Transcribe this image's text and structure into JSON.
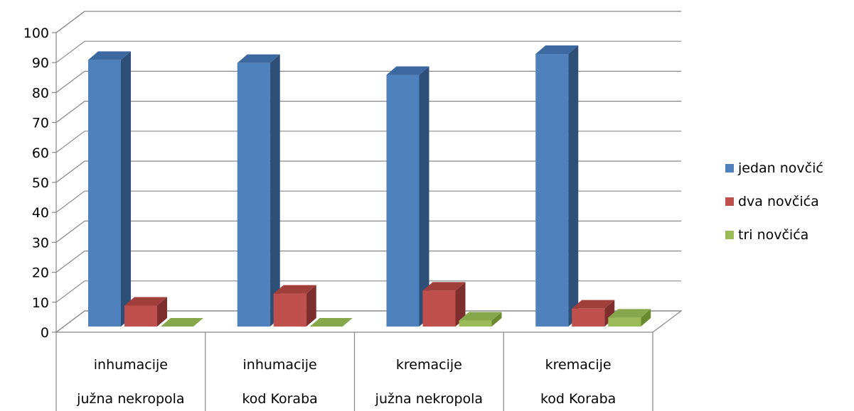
{
  "chart_data": {
    "type": "bar",
    "style": "3d-clustered-column",
    "categories": [
      [
        "inhumacije",
        "južna nekropola"
      ],
      [
        "inhumacije",
        "kod Koraba"
      ],
      [
        "kremacije",
        "južna nekropola"
      ],
      [
        "kremacije",
        "kod Koraba"
      ]
    ],
    "series": [
      {
        "name": "jedan novčić",
        "color": "#4F81BD",
        "side": "#2E4F78",
        "top": "#3C69A0",
        "values": [
          89,
          88,
          84,
          91
        ]
      },
      {
        "name": "dva novčića",
        "color": "#C0504D",
        "side": "#7E2E2C",
        "top": "#A03F3C",
        "values": [
          7,
          11,
          12,
          6
        ]
      },
      {
        "name": "tri novčića",
        "color": "#9BBB59",
        "side": "#6A8A2E",
        "top": "#86A84A",
        "values": [
          0,
          0,
          2,
          3
        ]
      }
    ],
    "ylim": [
      0,
      100
    ],
    "yticks": [
      "0",
      "10",
      "20",
      "30",
      "40",
      "50",
      "60",
      "70",
      "80",
      "90",
      "100"
    ],
    "grid": true,
    "legend_position": "right",
    "title": "",
    "xlabel": "",
    "ylabel": ""
  }
}
